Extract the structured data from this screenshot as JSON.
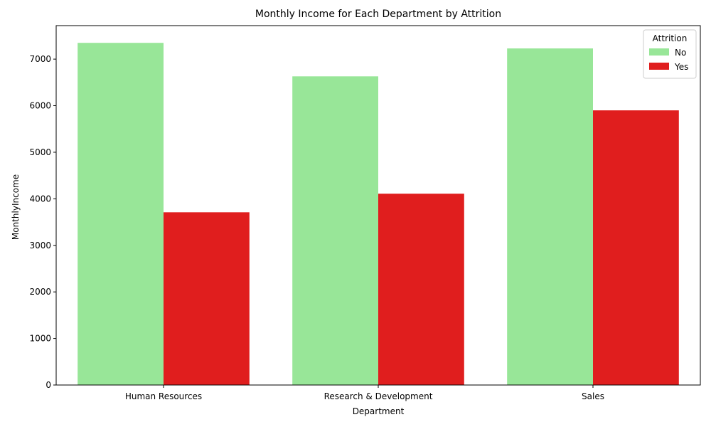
{
  "chart_data": {
    "type": "bar",
    "title": "Monthly Income for Each Department by Attrition",
    "xlabel": "Department",
    "ylabel": "MonthlyIncome",
    "categories": [
      "Human Resources",
      "Research & Development",
      "Sales"
    ],
    "series": [
      {
        "name": "No",
        "color": "#98e698",
        "values": [
          7350,
          6630,
          7230
        ]
      },
      {
        "name": "Yes",
        "color": "#e01e1e",
        "values": [
          3710,
          4110,
          5900
        ]
      }
    ],
    "ylim": [
      0,
      7720
    ],
    "yticks": [
      0,
      1000,
      2000,
      3000,
      4000,
      5000,
      6000,
      7000
    ],
    "legend": {
      "title": "Attrition",
      "placement": "top-right"
    },
    "grid": false
  }
}
